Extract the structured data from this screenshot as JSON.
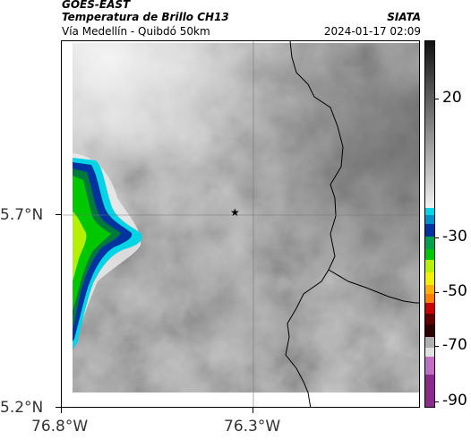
{
  "header": {
    "satellite": "GOES-EAST",
    "product": "Temperatura de Brillo CH13",
    "route": "Vía Medellín - Quibdó 50km",
    "agency": "SIATA",
    "timestamp": "2024-01-17 02:09"
  },
  "axes": {
    "y_ticks": [
      {
        "label": "5.7°N",
        "lat": 5.7
      },
      {
        "label": "5.2°N",
        "lat": 5.2
      }
    ],
    "x_ticks": [
      {
        "label": "76.8°W",
        "lon": -76.8
      },
      {
        "label": "76.3°W",
        "lon": -76.3
      }
    ]
  },
  "marker": {
    "symbol": "★",
    "name": "location-star"
  },
  "colorbar": {
    "ticks": [
      {
        "label": "20",
        "value": 20
      },
      {
        "label": "-30",
        "value": -30
      },
      {
        "label": "-50",
        "value": -50
      },
      {
        "label": "-70",
        "value": -70
      },
      {
        "label": "-90",
        "value": -90
      }
    ],
    "colors": {
      "warm_top": "#111111",
      "warm_bottom": "#f2f2f2",
      "cyan": "#00d5e6",
      "blue": "#0033a0",
      "green": "#00c800",
      "yellow": "#f0f000",
      "orange": "#ff7f00",
      "red": "#c80000",
      "dark_red": "#300000",
      "purple": "#8a2c8a"
    }
  },
  "map_colors": {
    "cloud_grey": "#8f8f8f",
    "border_line": "#000000",
    "grid_line": "#777777"
  }
}
